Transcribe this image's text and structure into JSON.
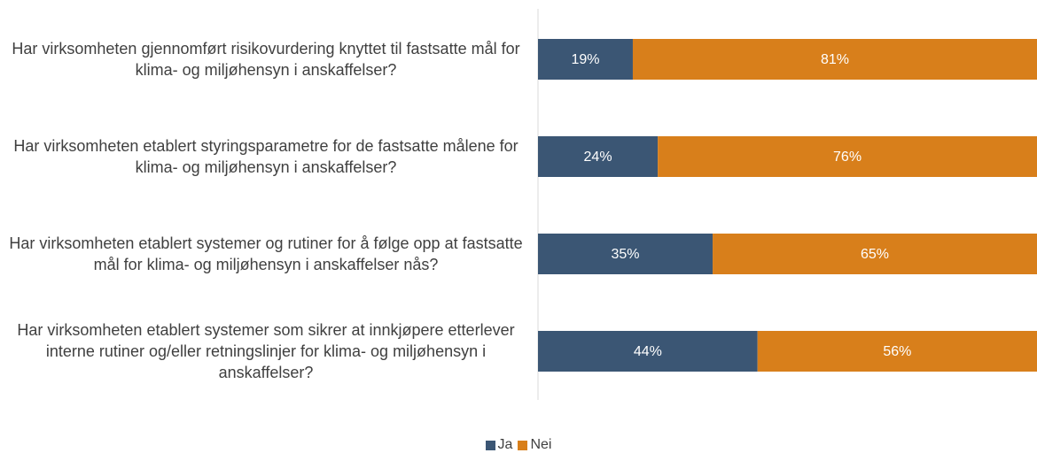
{
  "chart_data": {
    "type": "stacked-bar-horizontal",
    "categories": [
      "Har virksomheten gjennomført risikovurdering knyttet til fastsatte mål for klima- og miljøhensyn i anskaffelser?",
      "Har virksomheten etablert styringsparametre for de fastsatte målene for klima- og miljøhensyn i anskaffelser?",
      "Har virksomheten etablert systemer og rutiner for å følge opp at fastsatte mål for klima- og miljøhensyn i anskaffelser nås?",
      "Har virksomheten etablert systemer som sikrer at innkjøpere etterlever interne rutiner og/eller retningslinjer for klima- og miljøhensyn i anskaffelser?"
    ],
    "series": [
      {
        "name": "Ja",
        "color": "#3b5674",
        "values": [
          19,
          24,
          35,
          44
        ],
        "value_labels": [
          "19%",
          "24%",
          "35%",
          "44%"
        ]
      },
      {
        "name": "Nei",
        "color": "#d87f1b",
        "values": [
          81,
          76,
          65,
          56
        ],
        "value_labels": [
          "81%",
          "76%",
          "65%",
          "56%"
        ]
      }
    ],
    "xlim": [
      0,
      100
    ],
    "legend": "bottom"
  }
}
